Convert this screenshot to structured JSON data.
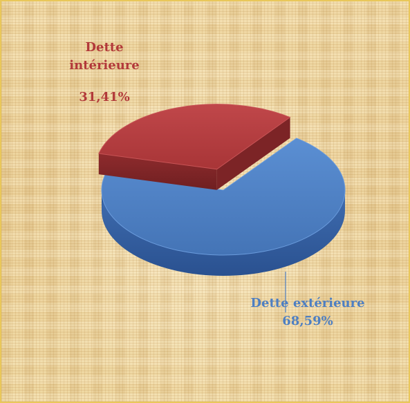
{
  "chart_data": {
    "type": "pie",
    "title": "",
    "labels": [
      "Dette intérieure",
      "Dette extérieure"
    ],
    "values": [
      31.41,
      68.59
    ],
    "value_labels": [
      "31,41%",
      "68,59%"
    ],
    "colors": [
      "#b2393a",
      "#4e7fc2"
    ],
    "exploded": "Dette intérieure",
    "style": "3d",
    "legend": "none"
  },
  "labels": {
    "interieure_line1": "Dette",
    "interieure_line2": "intérieure",
    "interieure_value": "31,41%",
    "exterieure_name": "Dette extérieure",
    "exterieure_value": "68,59%"
  }
}
